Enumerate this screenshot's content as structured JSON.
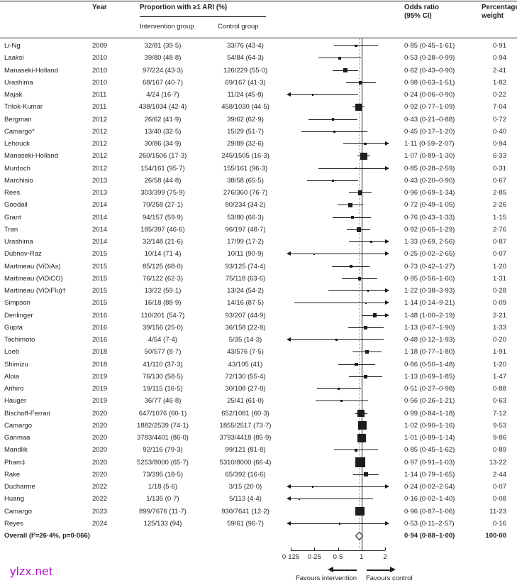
{
  "header": {
    "year": "Year",
    "proportion_group": "Proportion with ≥1 ARI (%)",
    "intervention": "Intervention group",
    "control": "Control group",
    "odds_ratio_line1": "Odds ratio",
    "odds_ratio_line2": "(95% CI)",
    "weight_line1": "Percentage",
    "weight_line2": "weight"
  },
  "chart_data": {
    "type": "forest",
    "title": "Proportion with ≥1 ARI (%)",
    "x_scale": "log2",
    "xlim": [
      0.125,
      2
    ],
    "null_line": 1,
    "pooled_line": 0.94,
    "axis": {
      "min": 0.125,
      "max": 2,
      "tick_values": [
        0.125,
        0.25,
        0.5,
        1,
        2
      ],
      "tick_labels": [
        "0·125",
        "0·25",
        "0·5",
        "1",
        "2"
      ],
      "favours_left": "Favours intervention",
      "favours_right": "Favours control"
    },
    "studies": [
      {
        "name": "Li-Ng",
        "year": "2009",
        "intervention": "32/81 (39·5)",
        "control": "33/76 (43·4)",
        "or": 0.85,
        "ci_low": 0.45,
        "ci_high": 1.61,
        "or_text": "0·85 (0·45–1·61)",
        "weight": "0·91",
        "weight_value": 0.91
      },
      {
        "name": "Laaksi",
        "year": "2010",
        "intervention": "39/80 (48·8)",
        "control": "54/84 (64·3)",
        "or": 0.53,
        "ci_low": 0.28,
        "ci_high": 0.99,
        "or_text": "0·53 (0·28–0·99)",
        "weight": "0·94",
        "weight_value": 0.94
      },
      {
        "name": "Manaseki-Holland",
        "year": "2010",
        "intervention": "97/224 (43·3)",
        "control": "126/229 (55·0)",
        "or": 0.62,
        "ci_low": 0.43,
        "ci_high": 0.9,
        "or_text": "0·62 (0·43–0·90)",
        "weight": "2·41",
        "weight_value": 2.41
      },
      {
        "name": "Urashima",
        "year": "2010",
        "intervention": "68/167 (40·7)",
        "control": "69/167 (41·3)",
        "or": 0.98,
        "ci_low": 0.63,
        "ci_high": 1.51,
        "or_text": "0·98 (0·63–1·51)",
        "weight": "1·82",
        "weight_value": 1.82
      },
      {
        "name": "Majak",
        "year": "2011",
        "intervention": "4/24 (16·7)",
        "control": "11/24 (45·8)",
        "or": 0.24,
        "ci_low": 0.06,
        "ci_high": 0.9,
        "or_text": "0·24 (0·06–0·90)",
        "weight": "0·22",
        "weight_value": 0.22
      },
      {
        "name": "Trilok-Kumar",
        "year": "2011",
        "intervention": "438/1034 (42·4)",
        "control": "458/1030 (44·5)",
        "or": 0.92,
        "ci_low": 0.77,
        "ci_high": 1.09,
        "or_text": "0·92 (0·77–1·09)",
        "weight": "7·04",
        "weight_value": 7.04
      },
      {
        "name": "Bergman",
        "year": "2012",
        "intervention": "26/62 (41·9)",
        "control": "39/62 (62·9)",
        "or": 0.43,
        "ci_low": 0.21,
        "ci_high": 0.88,
        "or_text": "0·43 (0·21–0·88)",
        "weight": "0·72",
        "weight_value": 0.72
      },
      {
        "name": "Camargo*",
        "year": "2012",
        "intervention": "13/40 (32·5)",
        "control": "15/29 (51·7)",
        "or": 0.45,
        "ci_low": 0.17,
        "ci_high": 1.2,
        "or_text": "0·45 (0·17–1·20)",
        "weight": "0·40",
        "weight_value": 0.4
      },
      {
        "name": "Lehouck",
        "year": "2012",
        "intervention": "30/86 (34·9)",
        "control": "29/89 (32·6)",
        "or": 1.11,
        "ci_low": 0.59,
        "ci_high": 2.07,
        "or_text": "1·11 (0·59–2·07)",
        "weight": "0·94",
        "weight_value": 0.94
      },
      {
        "name": "Manaseki-Holland",
        "year": "2012",
        "intervention": "260/1506 (17·3)",
        "control": "245/1505 (16·3)",
        "or": 1.07,
        "ci_low": 0.89,
        "ci_high": 1.3,
        "or_text": "1·07 (0·89–1·30)",
        "weight": "6·33",
        "weight_value": 6.33
      },
      {
        "name": "Murdoch",
        "year": "2012",
        "intervention": "154/161 (95·7)",
        "control": "155/161 (96·3)",
        "or": 0.85,
        "ci_low": 0.28,
        "ci_high": 2.59,
        "or_text": "0·85 (0·28–2·59)",
        "weight": "0·31",
        "weight_value": 0.31
      },
      {
        "name": "Marchisio",
        "year": "2013",
        "intervention": "26/58 (44·8)",
        "control": "38/58 (65·5)",
        "or": 0.43,
        "ci_low": 0.2,
        "ci_high": 0.9,
        "or_text": "0·43 (0·20–0·90)",
        "weight": "0·67",
        "weight_value": 0.67
      },
      {
        "name": "Rees",
        "year": "2013",
        "intervention": "303/399 (75·9)",
        "control": "276/360 (76·7)",
        "or": 0.96,
        "ci_low": 0.69,
        "ci_high": 1.34,
        "or_text": "0·96 (0·69–1·34)",
        "weight": "2·85",
        "weight_value": 2.85
      },
      {
        "name": "Goodall",
        "year": "2014",
        "intervention": "70/258 (27·1)",
        "control": "80/234 (34·2)",
        "or": 0.72,
        "ci_low": 0.49,
        "ci_high": 1.05,
        "or_text": "0·72 (0·49–1·05)",
        "weight": "2·26",
        "weight_value": 2.26
      },
      {
        "name": "Grant",
        "year": "2014",
        "intervention": "94/157 (59·9)",
        "control": "53/80 (66·3)",
        "or": 0.76,
        "ci_low": 0.43,
        "ci_high": 1.33,
        "or_text": "0·76 (0·43–1·33)",
        "weight": "1·15",
        "weight_value": 1.15
      },
      {
        "name": "Tran",
        "year": "2014",
        "intervention": "185/397 (46·6)",
        "control": "96/197 (48·7)",
        "or": 0.92,
        "ci_low": 0.65,
        "ci_high": 1.29,
        "or_text": "0·92 (0·65–1·29)",
        "weight": "2·76",
        "weight_value": 2.76
      },
      {
        "name": "Urashima",
        "year": "2014",
        "intervention": "32/148 (21·6)",
        "control": "17/99 (17·2)",
        "or": 1.33,
        "ci_low": 0.69,
        "ci_high": 2.56,
        "or_text": "1·33 (0·69, 2·56)",
        "weight": "0·87",
        "weight_value": 0.87
      },
      {
        "name": "Dubnov-Raz",
        "year": "2015",
        "intervention": "10/14 (71·4)",
        "control": "10/11 (90·9)",
        "or": 0.25,
        "ci_low": 0.02,
        "ci_high": 2.65,
        "or_text": "0·25 (0·02–2·65)",
        "weight": "0·07",
        "weight_value": 0.07
      },
      {
        "name": "Martineau (ViDiAs)",
        "year": "2015",
        "intervention": "85/125 (68·0)",
        "control": "93/125 (74·4)",
        "or": 0.73,
        "ci_low": 0.42,
        "ci_high": 1.27,
        "or_text": "0·73 (0·42–1·27)",
        "weight": "1·20",
        "weight_value": 1.2
      },
      {
        "name": "Martineau (ViDiCO)",
        "year": "2015",
        "intervention": "76/122 (62·3)",
        "control": "75/118 (63·6)",
        "or": 0.95,
        "ci_low": 0.56,
        "ci_high": 1.6,
        "or_text": "0·95 (0·56–1·60)",
        "weight": "1·31",
        "weight_value": 1.31
      },
      {
        "name": "Martineau (ViDiFlu)†",
        "year": "2015",
        "intervention": "13/22 (59·1)",
        "control": "13/24 (54·2)",
        "or": 1.22,
        "ci_low": 0.38,
        "ci_high": 3.93,
        "or_text": "1·22 (0·38–3·93)",
        "weight": "0·28",
        "weight_value": 0.28
      },
      {
        "name": "Simpson",
        "year": "2015",
        "intervention": "16/18 (88·9)",
        "control": "14/16 (87·5)",
        "or": 1.14,
        "ci_low": 0.14,
        "ci_high": 9.21,
        "or_text": "1·14 (0·14–9·21)",
        "weight": "0·09",
        "weight_value": 0.09
      },
      {
        "name": "Denlinger",
        "year": "2016",
        "intervention": "110/201 (54·7)",
        "control": "93/207 (44·9)",
        "or": 1.48,
        "ci_low": 1.0,
        "ci_high": 2.19,
        "or_text": "1·48 (1·00–2·19)",
        "weight": "2·21",
        "weight_value": 2.21
      },
      {
        "name": "Gupta",
        "year": "2016",
        "intervention": "39/156 (25·0)",
        "control": "36/158 (22·8)",
        "or": 1.13,
        "ci_low": 0.67,
        "ci_high": 1.9,
        "or_text": "1·13 (0·67–1·90)",
        "weight": "1·33",
        "weight_value": 1.33
      },
      {
        "name": "Tachimoto",
        "year": "2016",
        "intervention": "4/54 (7·4)",
        "control": "5/35 (14·3)",
        "or": 0.48,
        "ci_low": 0.12,
        "ci_high": 1.93,
        "or_text": "0·48 (0·12–1·93)",
        "weight": "0·20",
        "weight_value": 0.2
      },
      {
        "name": "Loeb",
        "year": "2018",
        "intervention": "50/577 (8·7)",
        "control": "43/576 (7·5)",
        "or": 1.18,
        "ci_low": 0.77,
        "ci_high": 1.8,
        "or_text": "1·18 (0·77–1·80)",
        "weight": "1·91",
        "weight_value": 1.91
      },
      {
        "name": "Shimizu",
        "year": "2018",
        "intervention": "41/110 (37·3)",
        "control": "43/105 (41)",
        "or": 0.86,
        "ci_low": 0.5,
        "ci_high": 1.48,
        "or_text": "0·86 (0·50–1·48)",
        "weight": "1·20",
        "weight_value": 1.2
      },
      {
        "name": "Aloia",
        "year": "2019",
        "intervention": "76/130 (58·5)",
        "control": "72/130 (55·4)",
        "or": 1.13,
        "ci_low": 0.69,
        "ci_high": 1.85,
        "or_text": "1·13 (0·69–1·85)",
        "weight": "1·47",
        "weight_value": 1.47
      },
      {
        "name": "Arihiro",
        "year": "2019",
        "intervention": "19/115 (16·5)",
        "control": "30/108 (27·8)",
        "or": 0.51,
        "ci_low": 0.27,
        "ci_high": 0.98,
        "or_text": "0·51 (0·27–0·98)",
        "weight": "0·88",
        "weight_value": 0.88
      },
      {
        "name": "Hauger",
        "year": "2019",
        "intervention": "36/77 (46·8)",
        "control": "25/41 (61·0)",
        "or": 0.56,
        "ci_low": 0.26,
        "ci_high": 1.21,
        "or_text": "0·56 (0·26–1·21)",
        "weight": "0·63",
        "weight_value": 0.63
      },
      {
        "name": "Bischoff-Ferrari",
        "year": "2020",
        "intervention": "647/1076 (60·1)",
        "control": "652/1081 (60·3)",
        "or": 0.99,
        "ci_low": 0.84,
        "ci_high": 1.18,
        "or_text": "0·99 (0·84–1·18)",
        "weight": "7·12",
        "weight_value": 7.12
      },
      {
        "name": "Camargo",
        "year": "2020",
        "intervention": "1882/2539 (74·1)",
        "control": "1855/2517 (73·7)",
        "or": 1.02,
        "ci_low": 0.9,
        "ci_high": 1.16,
        "or_text": "1·02 (0·90–1·16)",
        "weight": "9·53",
        "weight_value": 9.53
      },
      {
        "name": "Ganmaa",
        "year": "2020",
        "intervention": "3783/4401 (86·0)",
        "control": "3793/4418 (85·9)",
        "or": 1.01,
        "ci_low": 0.89,
        "ci_high": 1.14,
        "or_text": "1·01 (0·89–1·14)",
        "weight": "9·86",
        "weight_value": 9.86
      },
      {
        "name": "Mandlik",
        "year": "2020",
        "intervention": "92/116 (79·3)",
        "control": "99/121 (81·8)",
        "or": 0.85,
        "ci_low": 0.45,
        "ci_high": 1.62,
        "or_text": "0·85 (0·45–1·62)",
        "weight": "0·89",
        "weight_value": 0.89
      },
      {
        "name": "Pham‡",
        "year": "2020",
        "intervention": "5253/8000 (65·7)",
        "control": "5310/8000 (66·4)",
        "or": 0.97,
        "ci_low": 0.91,
        "ci_high": 1.03,
        "or_text": "0·97 (0·91–1·03)",
        "weight": "13·22",
        "weight_value": 13.22
      },
      {
        "name": "Rake",
        "year": "2020",
        "intervention": "73/395 (18·5)",
        "control": "65/392 (16·6)",
        "or": 1.14,
        "ci_low": 0.79,
        "ci_high": 1.65,
        "or_text": "1·14 (0·79–1·65)",
        "weight": "2·44",
        "weight_value": 2.44
      },
      {
        "name": "Ducharme",
        "year": "2022",
        "intervention": "1/18 (5·6)",
        "control": "3/15 (20·0)",
        "or": 0.24,
        "ci_low": 0.02,
        "ci_high": 2.54,
        "or_text": "0·24 (0·02–2·54)",
        "weight": "0·07",
        "weight_value": 0.07
      },
      {
        "name": "Huang",
        "year": "2022",
        "intervention": "1/135 (0·7)",
        "control": "5/113 (4·4)",
        "or": 0.16,
        "ci_low": 0.02,
        "ci_high": 1.4,
        "or_text": "0·16 (0·02–1·40)",
        "weight": "0·08",
        "weight_value": 0.08
      },
      {
        "name": "Camargo",
        "year": "2023",
        "intervention": "899/7676 (11·7)",
        "control": "930/7641 (12·2)",
        "or": 0.96,
        "ci_low": 0.87,
        "ci_high": 1.06,
        "or_text": "0·96 (0·87–1·06)",
        "weight": "11·23",
        "weight_value": 11.23
      },
      {
        "name": "Reyes",
        "year": "2024",
        "intervention": "125/133 (94)",
        "control": "59/61 (96·7)",
        "or": 0.53,
        "ci_low": 0.11,
        "ci_high": 2.57,
        "or_text": "0·53 (0·11–2·57)",
        "weight": "0·16",
        "weight_value": 0.16
      }
    ],
    "overall": {
      "label": "Overall (I²=26·4%, p=0·066)",
      "or": 0.94,
      "ci_low": 0.88,
      "ci_high": 1.0,
      "or_text": "0·94 (0·88–1·00)",
      "weight": "100·00"
    }
  },
  "watermark": {
    "text": "ylzx.net",
    "color": "#b515c8"
  },
  "colors": {
    "ink": "#231f20",
    "marker": "#1d1d1b",
    "pooled_dash": "#7fb0ad",
    "background": "#ffffff"
  }
}
